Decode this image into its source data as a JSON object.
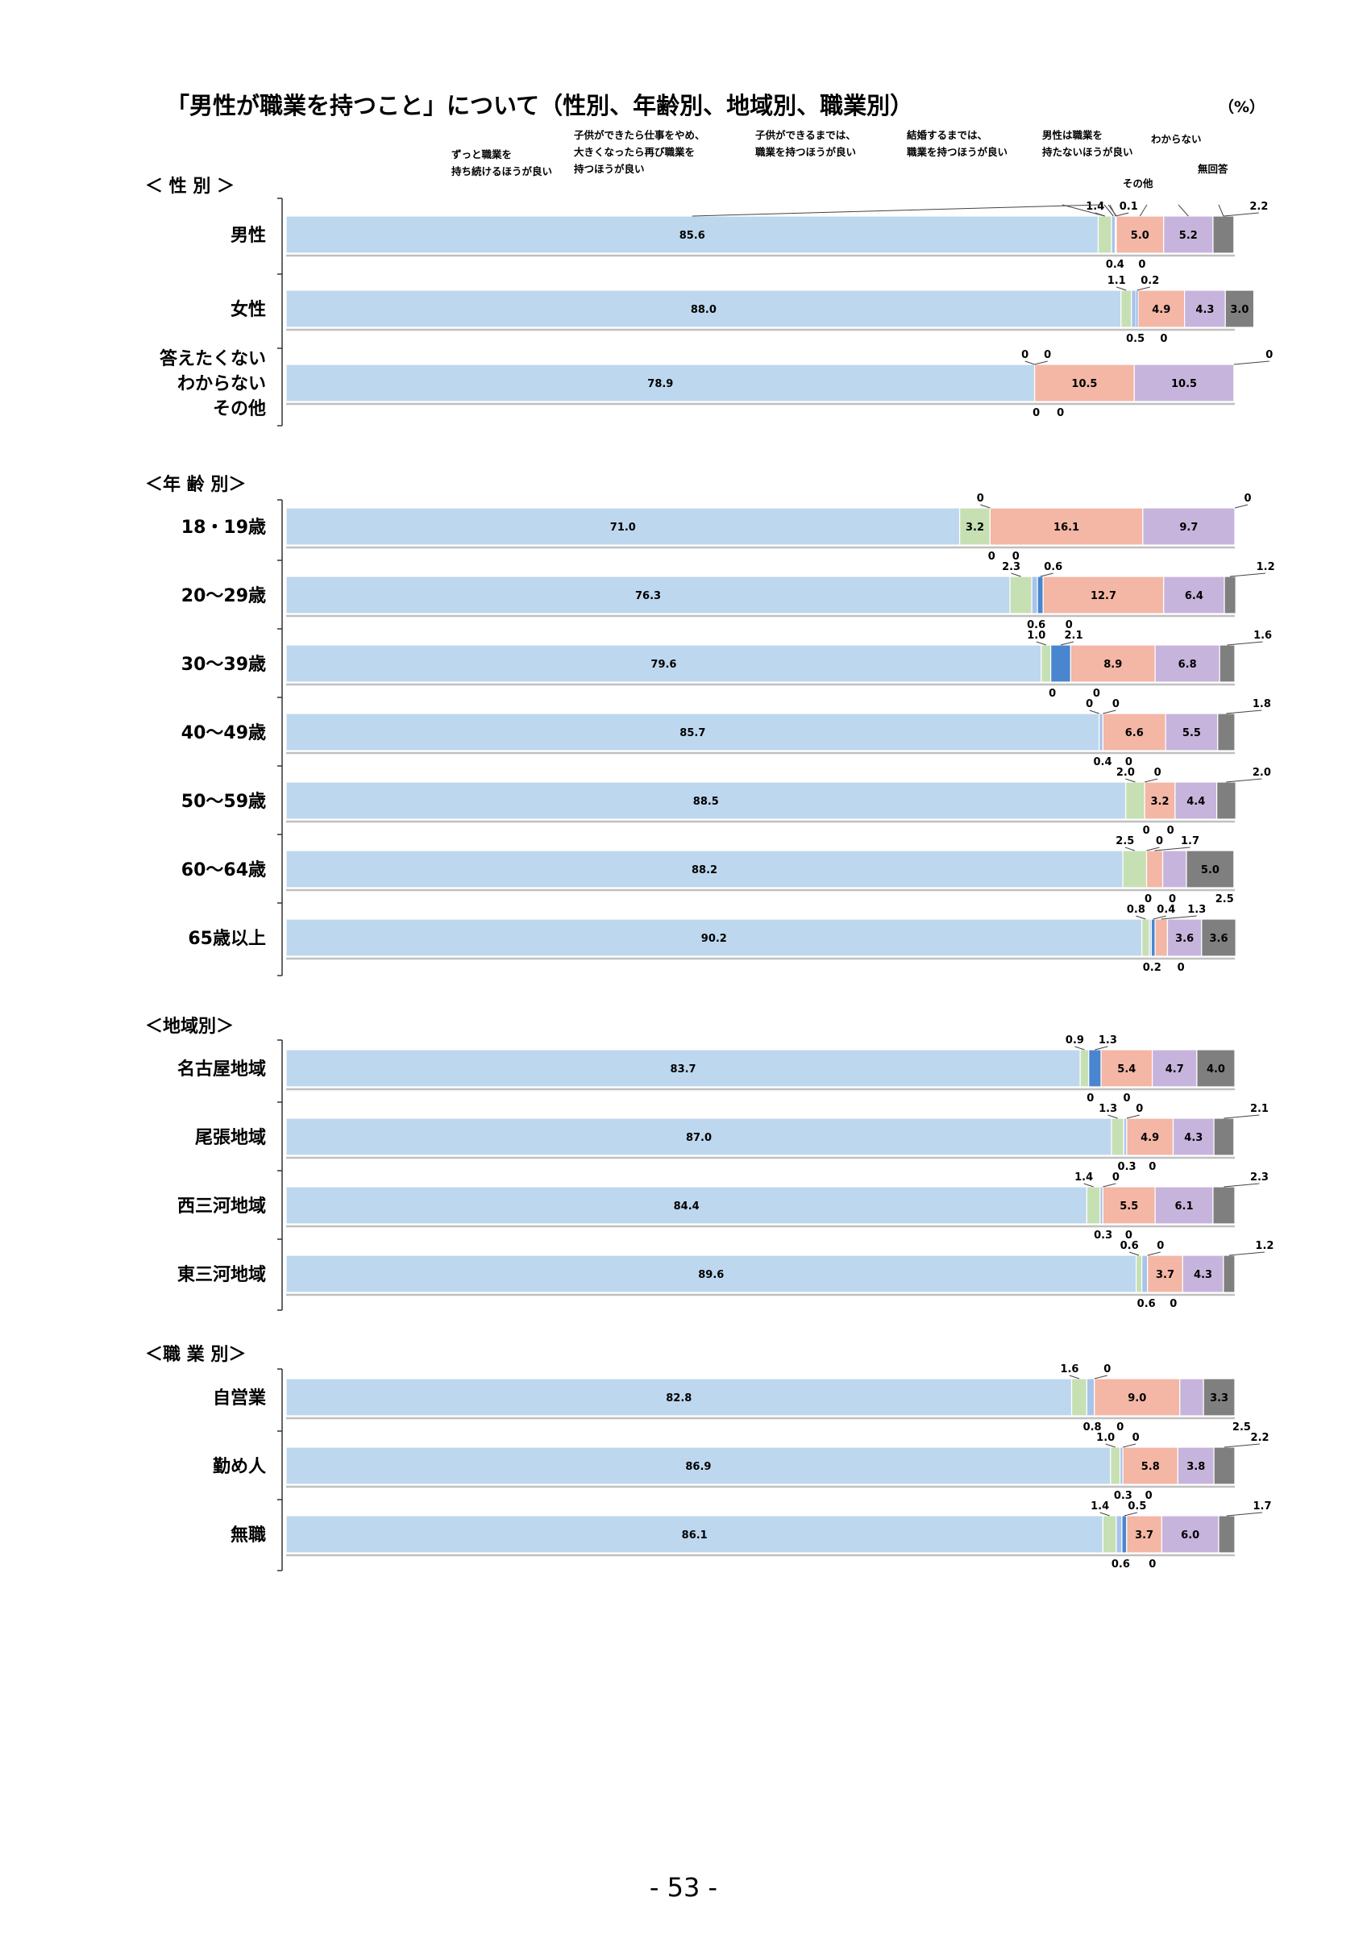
{
  "title": "「男性が職業を持つこと」について（性別、年齢別、地域別、職業別）",
  "unit": "（%）",
  "page_number": "- 53 -",
  "colors": {
    "c1": "#bdd7ee",
    "c2": "#c6e0b4",
    "c3": "#a9c4eb",
    "c4": "#4a86cf",
    "c5": "#f4b6a5",
    "c6": "#c7b4dc",
    "c7": "#7f7f7f"
  },
  "chart_data": {
    "type": "bar",
    "stacked": true,
    "orientation": "horizontal",
    "xlim": [
      0,
      100
    ],
    "series_names": [
      "ずっと職業を持ち続けるほうが良い",
      "子供ができたら仕事をやめ、大きくなったら再び職業を持つほうが良い",
      "子供ができるまでは、職業を持つほうが良い",
      "結婚するまでは、職業を持つほうが良い",
      "男性は職業を持たないほうが良い",
      "その他",
      "わからない",
      "無回答"
    ],
    "legend_labels": [
      {
        "id": "s1",
        "lines": [
          "ずっと職業を",
          "持ち続けるほうが良い"
        ]
      },
      {
        "id": "s2",
        "lines": [
          "子供ができたら仕事をやめ、",
          "大きくなったら再び職業を",
          "持つほうが良い"
        ]
      },
      {
        "id": "s3",
        "lines": [
          "子供ができるまでは、",
          "職業を持つほうが良い"
        ]
      },
      {
        "id": "s4",
        "lines": [
          "結婚するまでは、",
          "職業を持つほうが良い"
        ]
      },
      {
        "id": "s5",
        "lines": [
          "男性は職業を",
          "持たないほうが良い"
        ]
      },
      {
        "id": "s6",
        "lines": [
          "その他"
        ]
      },
      {
        "id": "s7",
        "lines": [
          "わからない"
        ]
      },
      {
        "id": "s8",
        "lines": [
          "無回答"
        ]
      }
    ],
    "groups": [
      {
        "title": "＜ 性 別 ＞",
        "rows": [
          {
            "label": [
              "男性"
            ],
            "values": [
              85.6,
              1.4,
              0.4,
              0.1,
              0,
              5.0,
              5.2,
              2.2
            ],
            "texts": [
              "85.6",
              "1.4",
              "0.4",
              "0.1",
              "0",
              "5.0",
              "5.2",
              "2.2"
            ]
          },
          {
            "label": [
              "女性"
            ],
            "values": [
              88.0,
              1.1,
              0.5,
              0.2,
              0,
              4.9,
              4.3,
              3.0
            ],
            "texts": [
              "88.0",
              "1.1",
              "0.5",
              "0.2",
              "0",
              "4.9",
              "4.3",
              "3.0"
            ]
          },
          {
            "label": [
              "答えたくない",
              "わからない",
              "その他"
            ],
            "values": [
              78.9,
              0,
              0,
              0,
              0,
              10.5,
              10.5,
              0
            ],
            "texts": [
              "78.9",
              "0",
              "0",
              "0",
              "0",
              "10.5",
              "10.5",
              "0"
            ]
          }
        ]
      },
      {
        "title": "＜年 齢 別＞",
        "rows": [
          {
            "label": [
              "18・19歳"
            ],
            "values": [
              71.0,
              3.2,
              0,
              0,
              0,
              16.1,
              9.7,
              0
            ],
            "texts": [
              "71.0",
              "3.2",
              "0",
              "0",
              "0",
              "16.1",
              "9.7",
              "0"
            ]
          },
          {
            "label": [
              "20～29歳"
            ],
            "values": [
              76.3,
              2.3,
              0.6,
              0.6,
              0,
              12.7,
              6.4,
              1.2
            ],
            "texts": [
              "76.3",
              "2.3",
              "0.6",
              "0.6",
              "0",
              "12.7",
              "6.4",
              "1.2"
            ]
          },
          {
            "label": [
              "30～39歳"
            ],
            "values": [
              79.6,
              1.0,
              0,
              2.1,
              0,
              8.9,
              6.8,
              1.6
            ],
            "texts": [
              "79.6",
              "1.0",
              "0",
              "2.1",
              "0",
              "8.9",
              "6.8",
              "1.6"
            ]
          },
          {
            "label": [
              "40～49歳"
            ],
            "values": [
              85.7,
              0,
              0.4,
              0,
              0,
              6.6,
              5.5,
              1.8
            ],
            "texts": [
              "85.7",
              "0",
              "0.4",
              "0",
              "0",
              "6.6",
              "5.5",
              "1.8"
            ]
          },
          {
            "label": [
              "50～59歳"
            ],
            "values": [
              88.5,
              2.0,
              0,
              0,
              0,
              3.2,
              4.4,
              2.0
            ],
            "texts": [
              "88.5",
              "2.0",
              "0",
              "0",
              "0",
              "3.2",
              "4.4",
              "2.0"
            ]
          },
          {
            "label": [
              "60～64歳"
            ],
            "values": [
              88.2,
              2.5,
              0,
              0,
              0,
              1.7,
              2.5,
              5.0
            ],
            "texts": [
              "88.2",
              "2.5",
              "0",
              "0",
              "0",
              "1.7",
              "2.5",
              "5.0"
            ]
          },
          {
            "label": [
              "65歳以上"
            ],
            "values": [
              90.2,
              0.8,
              0.2,
              0.4,
              0,
              1.3,
              3.6,
              3.6
            ],
            "texts": [
              "90.2",
              "0.8",
              "0.2",
              "0.4",
              "0",
              "1.3",
              "3.6",
              "3.6"
            ]
          }
        ]
      },
      {
        "title": "＜地域別＞",
        "rows": [
          {
            "label": [
              "名古屋地域"
            ],
            "values": [
              83.7,
              0.9,
              0,
              1.3,
              0,
              5.4,
              4.7,
              4.0
            ],
            "texts": [
              "83.7",
              "0.9",
              "0",
              "1.3",
              "0",
              "5.4",
              "4.7",
              "4.0"
            ]
          },
          {
            "label": [
              "尾張地域"
            ],
            "values": [
              87.0,
              1.3,
              0.3,
              0,
              0,
              4.9,
              4.3,
              2.1
            ],
            "texts": [
              "87.0",
              "1.3",
              "0.3",
              "0",
              "0",
              "4.9",
              "4.3",
              "2.1"
            ]
          },
          {
            "label": [
              "西三河地域"
            ],
            "values": [
              84.4,
              1.4,
              0.3,
              0,
              0,
              5.5,
              6.1,
              2.3
            ],
            "texts": [
              "84.4",
              "1.4",
              "0.3",
              "0",
              "0",
              "5.5",
              "6.1",
              "2.3"
            ]
          },
          {
            "label": [
              "東三河地域"
            ],
            "values": [
              89.6,
              0.6,
              0.6,
              0,
              0,
              3.7,
              4.3,
              1.2
            ],
            "texts": [
              "89.6",
              "0.6",
              "0.6",
              "0",
              "0",
              "3.7",
              "4.3",
              "1.2"
            ]
          }
        ]
      },
      {
        "title": "＜職 業 別＞",
        "rows": [
          {
            "label": [
              "自営業"
            ],
            "values": [
              82.8,
              1.6,
              0.8,
              0,
              0,
              9.0,
              2.5,
              3.3
            ],
            "texts": [
              "82.8",
              "1.6",
              "0.8",
              "0",
              "0",
              "9.0",
              "2.5",
              "3.3"
            ]
          },
          {
            "label": [
              "勤め人"
            ],
            "values": [
              86.9,
              1.0,
              0.3,
              0,
              0,
              5.8,
              3.8,
              2.2
            ],
            "texts": [
              "86.9",
              "1.0",
              "0.3",
              "0",
              "0",
              "5.8",
              "3.8",
              "2.2"
            ]
          },
          {
            "label": [
              "無職"
            ],
            "values": [
              86.1,
              1.4,
              0.6,
              0.5,
              0,
              3.7,
              6.0,
              1.7
            ],
            "texts": [
              "86.1",
              "1.4",
              "0.6",
              "0.5",
              "0",
              "3.7",
              "6.0",
              "1.7"
            ]
          }
        ]
      }
    ]
  }
}
